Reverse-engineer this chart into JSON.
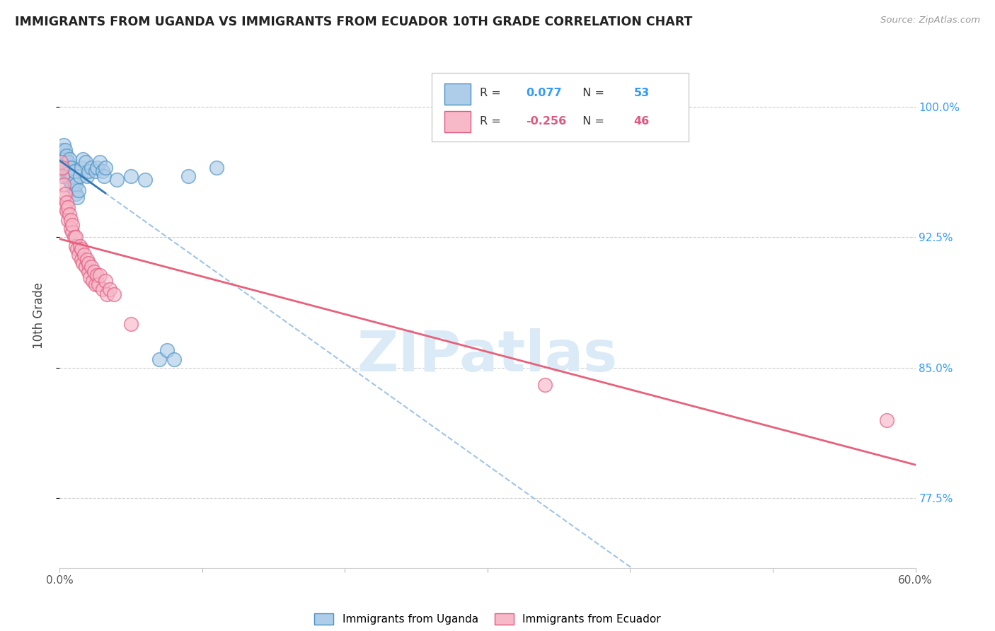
{
  "title": "IMMIGRANTS FROM UGANDA VS IMMIGRANTS FROM ECUADOR 10TH GRADE CORRELATION CHART",
  "source": "Source: ZipAtlas.com",
  "ylabel": "10th Grade",
  "ytick_labels": [
    "100.0%",
    "92.5%",
    "85.0%",
    "77.5%"
  ],
  "ytick_values": [
    1.0,
    0.925,
    0.85,
    0.775
  ],
  "xlim": [
    0.0,
    0.6
  ],
  "ylim": [
    0.735,
    1.025
  ],
  "legend_label1": "Immigrants from Uganda",
  "legend_label2": "Immigrants from Ecuador",
  "r1_text": "0.077",
  "n1_text": "53",
  "r2_text": "-0.256",
  "n2_text": "46",
  "color_blue_fill": "#aecde8",
  "color_blue_edge": "#4a90c4",
  "color_pink_fill": "#f7b8c8",
  "color_pink_edge": "#e05a80",
  "color_blue_line": "#3478b5",
  "color_pink_line": "#e8607a",
  "color_blue_dashed": "#a0c4e8",
  "color_rn_blue": "#3399ff",
  "color_rn_pink": "#e05880",
  "watermark_color": "#daeaf7",
  "uganda_x": [
    0.001,
    0.002,
    0.002,
    0.003,
    0.003,
    0.003,
    0.004,
    0.004,
    0.004,
    0.005,
    0.005,
    0.005,
    0.005,
    0.006,
    0.006,
    0.006,
    0.007,
    0.007,
    0.007,
    0.007,
    0.008,
    0.008,
    0.008,
    0.009,
    0.009,
    0.01,
    0.01,
    0.01,
    0.011,
    0.011,
    0.012,
    0.013,
    0.014,
    0.015,
    0.016,
    0.018,
    0.019,
    0.02,
    0.022,
    0.025,
    0.026,
    0.028,
    0.03,
    0.031,
    0.032,
    0.04,
    0.05,
    0.06,
    0.07,
    0.075,
    0.08,
    0.09,
    0.11
  ],
  "uganda_y": [
    0.97,
    0.968,
    0.975,
    0.96,
    0.972,
    0.978,
    0.965,
    0.97,
    0.975,
    0.962,
    0.965,
    0.968,
    0.972,
    0.96,
    0.963,
    0.968,
    0.958,
    0.962,
    0.965,
    0.97,
    0.956,
    0.96,
    0.965,
    0.955,
    0.96,
    0.952,
    0.957,
    0.963,
    0.95,
    0.955,
    0.948,
    0.952,
    0.96,
    0.965,
    0.97,
    0.968,
    0.96,
    0.963,
    0.965,
    0.963,
    0.965,
    0.968,
    0.963,
    0.96,
    0.965,
    0.958,
    0.96,
    0.958,
    0.855,
    0.86,
    0.855,
    0.96,
    0.965
  ],
  "ecuador_x": [
    0.001,
    0.002,
    0.002,
    0.003,
    0.003,
    0.004,
    0.004,
    0.005,
    0.005,
    0.006,
    0.006,
    0.007,
    0.008,
    0.008,
    0.009,
    0.009,
    0.01,
    0.011,
    0.011,
    0.012,
    0.013,
    0.014,
    0.015,
    0.015,
    0.016,
    0.017,
    0.018,
    0.019,
    0.02,
    0.02,
    0.021,
    0.022,
    0.023,
    0.024,
    0.025,
    0.026,
    0.027,
    0.028,
    0.03,
    0.032,
    0.033,
    0.035,
    0.038,
    0.05,
    0.34,
    0.58
  ],
  "ecuador_y": [
    0.968,
    0.96,
    0.965,
    0.948,
    0.955,
    0.942,
    0.95,
    0.94,
    0.945,
    0.935,
    0.942,
    0.938,
    0.93,
    0.935,
    0.928,
    0.932,
    0.925,
    0.92,
    0.925,
    0.918,
    0.915,
    0.92,
    0.912,
    0.918,
    0.91,
    0.915,
    0.908,
    0.912,
    0.905,
    0.91,
    0.902,
    0.908,
    0.9,
    0.905,
    0.898,
    0.903,
    0.898,
    0.903,
    0.895,
    0.9,
    0.892,
    0.895,
    0.892,
    0.875,
    0.84,
    0.82
  ]
}
